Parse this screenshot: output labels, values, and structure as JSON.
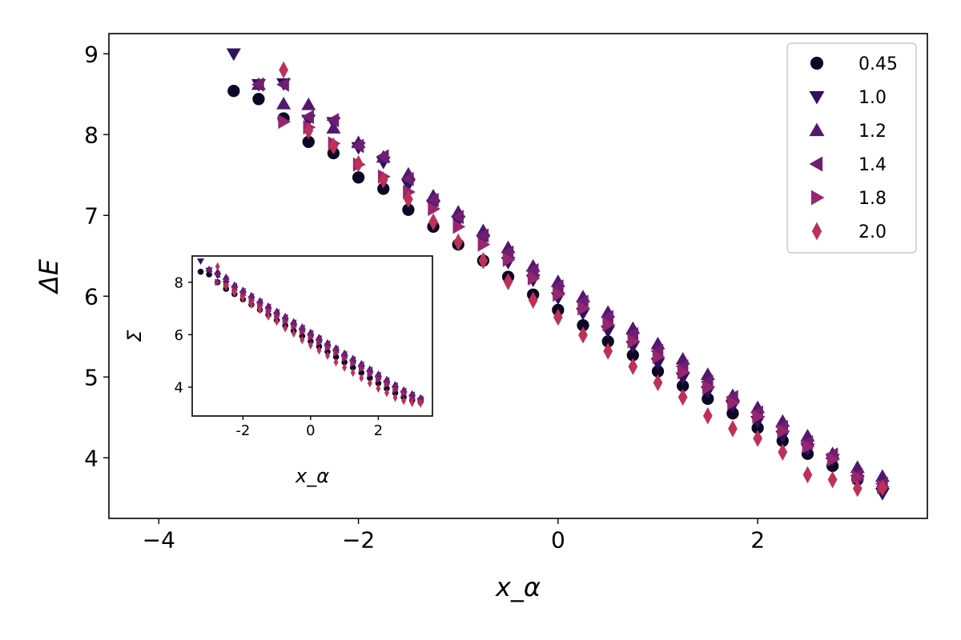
{
  "chart_data": [
    {
      "type": "scatter",
      "xlabel": "x_α",
      "ylabel": "ΔE",
      "xlim": [
        -4.5,
        3.7
      ],
      "ylim": [
        3.25,
        9.25
      ],
      "xticks": [
        -4,
        -2,
        0,
        2
      ],
      "xtick_labels": [
        "−4",
        "−2",
        "0",
        "2"
      ],
      "yticks": [
        4,
        5,
        6,
        7,
        8,
        9
      ],
      "ytick_labels": [
        "4",
        "5",
        "6",
        "7",
        "8",
        "9"
      ],
      "legend_position": "top-right",
      "series": [
        {
          "name": "0.45",
          "marker": "circle",
          "color": "#0b0724",
          "x": [
            -3.25,
            -3.0,
            -2.75,
            -2.5,
            -2.25,
            -2.0,
            -1.75,
            -1.5,
            -1.25,
            -1.0,
            -0.75,
            -0.5,
            -0.25,
            0.0,
            0.25,
            0.5,
            0.75,
            1.0,
            1.25,
            1.5,
            1.75,
            2.0,
            2.25,
            2.5,
            2.75,
            3.0,
            3.25
          ],
          "y": [
            8.54,
            8.44,
            8.2,
            7.91,
            7.77,
            7.47,
            7.33,
            7.07,
            6.86,
            6.64,
            6.44,
            6.24,
            6.02,
            5.83,
            5.64,
            5.44,
            5.27,
            5.07,
            4.89,
            4.73,
            4.55,
            4.37,
            4.21,
            4.05,
            3.9,
            3.73,
            3.62
          ]
        },
        {
          "name": "1.0",
          "marker": "triangle-down",
          "color": "#30115e",
          "x": [
            -3.25,
            -3.0,
            -2.75,
            -2.5,
            -2.25,
            -2.0,
            -1.75,
            -1.5,
            -1.25,
            -1.0,
            -0.75,
            -0.5,
            -0.25,
            0.0,
            0.25,
            0.5,
            0.75,
            1.0,
            1.25,
            1.5,
            1.75,
            2.0,
            2.25,
            2.5,
            2.75,
            3.0,
            3.25
          ],
          "y": [
            9.0,
            8.62,
            8.63,
            8.18,
            8.15,
            7.84,
            7.66,
            7.38,
            7.12,
            6.93,
            6.69,
            6.42,
            6.2,
            5.98,
            5.79,
            5.57,
            5.38,
            5.17,
            4.99,
            4.82,
            4.64,
            4.45,
            4.27,
            4.11,
            3.98,
            3.72,
            3.56
          ]
        },
        {
          "name": "1.2",
          "marker": "triangle-up",
          "color": "#54176e",
          "x": [
            -3.0,
            -2.75,
            -2.5,
            -2.25,
            -2.0,
            -1.75,
            -1.5,
            -1.25,
            -1.0,
            -0.75,
            -0.5,
            -0.25,
            0.0,
            0.25,
            0.5,
            0.75,
            1.0,
            1.25,
            1.5,
            1.75,
            2.0,
            2.25,
            2.5,
            2.75,
            3.0,
            3.25
          ],
          "y": [
            8.62,
            8.38,
            8.37,
            8.08,
            7.9,
            7.72,
            7.51,
            7.24,
            7.04,
            6.81,
            6.6,
            6.37,
            6.18,
            5.99,
            5.8,
            5.6,
            5.41,
            5.22,
            5.03,
            4.77,
            4.62,
            4.45,
            4.27,
            4.05,
            3.88,
            3.77
          ]
        },
        {
          "name": "1.4",
          "marker": "triangle-left",
          "color": "#6f1f73",
          "x": [
            -3.0,
            -2.75,
            -2.5,
            -2.25,
            -2.0,
            -1.75,
            -1.5,
            -1.25,
            -1.0,
            -0.75,
            -0.5,
            -0.25,
            0.0,
            0.25,
            0.5,
            0.75,
            1.0,
            1.25,
            1.5,
            1.75,
            2.0,
            2.25,
            2.5,
            2.75,
            3.0,
            3.25
          ],
          "y": [
            8.62,
            8.62,
            8.22,
            8.18,
            7.86,
            7.73,
            7.45,
            7.19,
            6.98,
            6.75,
            6.54,
            6.32,
            6.12,
            5.93,
            5.74,
            5.53,
            5.32,
            5.13,
            4.94,
            4.75,
            4.56,
            4.38,
            4.19,
            4.04,
            3.78,
            3.68
          ]
        },
        {
          "name": "1.8",
          "marker": "triangle-right",
          "color": "#96266f",
          "x": [
            -2.75,
            -2.5,
            -2.25,
            -2.0,
            -1.75,
            -1.5,
            -1.25,
            -1.0,
            -0.75,
            -0.5,
            -0.25,
            0.0,
            0.25,
            0.5,
            0.75,
            1.0,
            1.25,
            1.5,
            1.75,
            2.0,
            2.25,
            2.5,
            2.75,
            3.0,
            3.25
          ],
          "y": [
            8.16,
            8.09,
            7.89,
            7.63,
            7.48,
            7.29,
            7.08,
            6.86,
            6.64,
            6.45,
            6.22,
            6.02,
            5.85,
            5.65,
            5.44,
            5.25,
            5.06,
            4.87,
            4.68,
            4.51,
            4.33,
            4.14,
            3.98,
            3.76,
            3.64
          ]
        },
        {
          "name": "2.0",
          "marker": "diamond",
          "color": "#bd3158",
          "x": [
            -2.75,
            -2.5,
            -2.25,
            -2.0,
            -1.75,
            -1.5,
            -1.25,
            -1.0,
            -0.75,
            -0.5,
            -0.25,
            0.0,
            0.25,
            0.5,
            0.75,
            1.0,
            1.25,
            1.5,
            1.75,
            2.0,
            2.25,
            2.5,
            2.75,
            3.0,
            3.25
          ],
          "y": [
            8.8,
            8.05,
            7.86,
            7.64,
            7.44,
            7.2,
            6.92,
            6.67,
            6.44,
            6.18,
            5.95,
            5.74,
            5.52,
            5.32,
            5.13,
            4.93,
            4.75,
            4.52,
            4.36,
            4.24,
            4.07,
            3.79,
            3.73,
            3.62,
            3.63
          ]
        }
      ]
    },
    {
      "type": "scatter",
      "inset": true,
      "xlabel": "x_α",
      "ylabel": "Σ",
      "xlim": [
        -3.5,
        3.6
      ],
      "ylim": [
        2.9,
        9.0
      ],
      "xticks": [
        -2,
        0,
        2
      ],
      "xtick_labels": [
        "-2",
        "0",
        "2"
      ],
      "yticks": [
        4,
        6,
        8
      ],
      "ytick_labels": [
        "4",
        "6",
        "8"
      ],
      "series": [
        {
          "name": "0.45",
          "marker": "circle",
          "color": "#0b0724",
          "x": [
            -3.25,
            -3.0,
            -2.75,
            -2.5,
            -2.25,
            -2.0,
            -1.75,
            -1.5,
            -1.25,
            -1.0,
            -0.75,
            -0.5,
            -0.25,
            0.0,
            0.25,
            0.5,
            0.75,
            1.0,
            1.25,
            1.5,
            1.75,
            2.0,
            2.25,
            2.5,
            2.75,
            3.0,
            3.25
          ],
          "y": [
            8.4,
            8.3,
            8.0,
            7.75,
            7.55,
            7.35,
            7.15,
            6.95,
            6.75,
            6.55,
            6.35,
            6.15,
            5.95,
            5.75,
            5.55,
            5.35,
            5.15,
            4.95,
            4.75,
            4.55,
            4.35,
            4.15,
            3.95,
            3.78,
            3.62,
            3.5,
            3.45
          ]
        },
        {
          "name": "1.0",
          "marker": "triangle-down",
          "color": "#30115e",
          "x": [
            -3.25,
            -3.0,
            -2.75,
            -2.5,
            -2.25,
            -2.0,
            -1.75,
            -1.5,
            -1.25,
            -1.0,
            -0.75,
            -0.5,
            -0.25,
            0.0,
            0.25,
            0.5,
            0.75,
            1.0,
            1.25,
            1.5,
            1.75,
            2.0,
            2.25,
            2.5,
            2.75,
            3.0,
            3.25
          ],
          "y": [
            8.8,
            8.45,
            8.25,
            7.95,
            7.75,
            7.55,
            7.35,
            7.15,
            6.93,
            6.72,
            6.52,
            6.3,
            6.1,
            5.9,
            5.7,
            5.5,
            5.3,
            5.1,
            4.9,
            4.7,
            4.5,
            4.3,
            4.1,
            3.92,
            3.75,
            3.6,
            3.5
          ]
        },
        {
          "name": "1.2",
          "marker": "triangle-up",
          "color": "#54176e",
          "x": [
            -3.0,
            -2.75,
            -2.5,
            -2.25,
            -2.0,
            -1.75,
            -1.5,
            -1.25,
            -1.0,
            -0.75,
            -0.5,
            -0.25,
            0.0,
            0.25,
            0.5,
            0.75,
            1.0,
            1.25,
            1.5,
            1.75,
            2.0,
            2.25,
            2.5,
            2.75,
            3.0,
            3.25
          ],
          "y": [
            8.5,
            8.4,
            8.2,
            7.9,
            7.7,
            7.5,
            7.3,
            7.1,
            6.9,
            6.7,
            6.5,
            6.3,
            6.1,
            5.9,
            5.7,
            5.5,
            5.3,
            5.1,
            4.9,
            4.7,
            4.5,
            4.3,
            4.1,
            3.9,
            3.75,
            3.6
          ]
        },
        {
          "name": "1.4",
          "marker": "triangle-left",
          "color": "#6f1f73",
          "x": [
            -3.0,
            -2.75,
            -2.5,
            -2.25,
            -2.0,
            -1.75,
            -1.5,
            -1.25,
            -1.0,
            -0.75,
            -0.5,
            -0.25,
            0.0,
            0.25,
            0.5,
            0.75,
            1.0,
            1.25,
            1.5,
            1.75,
            2.0,
            2.25,
            2.5,
            2.75,
            3.0,
            3.25
          ],
          "y": [
            8.45,
            8.3,
            8.1,
            7.85,
            7.65,
            7.45,
            7.25,
            7.05,
            6.85,
            6.65,
            6.45,
            6.25,
            6.05,
            5.85,
            5.65,
            5.45,
            5.25,
            5.05,
            4.85,
            4.65,
            4.45,
            4.25,
            4.05,
            3.85,
            3.7,
            3.55
          ]
        },
        {
          "name": "1.8",
          "marker": "triangle-right",
          "color": "#96266f",
          "x": [
            -2.75,
            -2.5,
            -2.25,
            -2.0,
            -1.75,
            -1.5,
            -1.25,
            -1.0,
            -0.75,
            -0.5,
            -0.25,
            0.0,
            0.25,
            0.5,
            0.75,
            1.0,
            1.25,
            1.5,
            1.75,
            2.0,
            2.25,
            2.5,
            2.75,
            3.0,
            3.25
          ],
          "y": [
            8.0,
            7.9,
            7.7,
            7.5,
            7.3,
            7.1,
            6.9,
            6.7,
            6.5,
            6.3,
            6.1,
            5.9,
            5.7,
            5.5,
            5.3,
            5.1,
            4.9,
            4.7,
            4.5,
            4.3,
            4.1,
            3.9,
            3.75,
            3.55,
            3.45
          ]
        },
        {
          "name": "2.0",
          "marker": "diamond",
          "color": "#bd3158",
          "x": [
            -2.75,
            -2.5,
            -2.25,
            -2.0,
            -1.75,
            -1.5,
            -1.25,
            -1.0,
            -0.75,
            -0.5,
            -0.25,
            0.0,
            0.25,
            0.5,
            0.75,
            1.0,
            1.25,
            1.5,
            1.75,
            2.0,
            2.25,
            2.5,
            2.75,
            3.0,
            3.25
          ],
          "y": [
            8.6,
            7.85,
            7.6,
            7.4,
            7.15,
            6.95,
            6.7,
            6.5,
            6.25,
            6.05,
            5.8,
            5.6,
            5.4,
            5.2,
            4.95,
            4.75,
            4.55,
            4.35,
            4.15,
            3.95,
            3.78,
            3.6,
            3.48,
            3.4,
            3.38
          ]
        }
      ]
    }
  ]
}
